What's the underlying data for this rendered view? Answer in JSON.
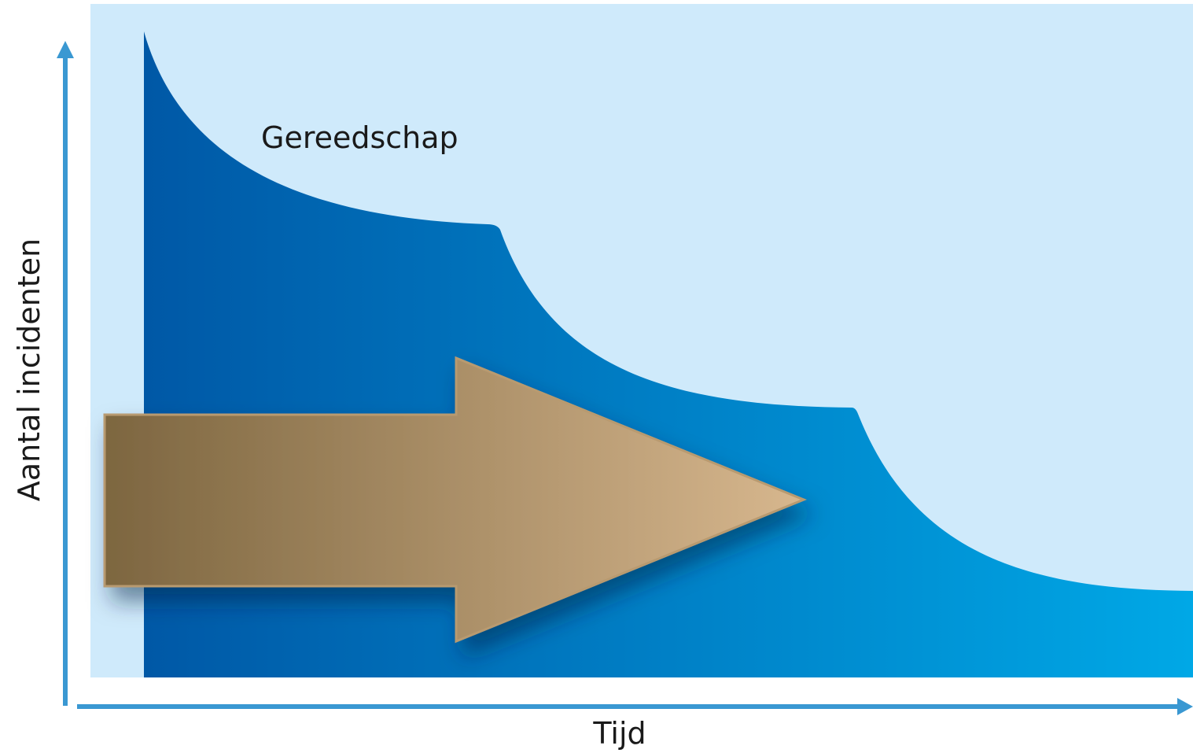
{
  "diagram": {
    "label": "Gereedschap",
    "y_axis_label": "Aantal incidenten",
    "x_axis_label": "Tijd"
  }
}
